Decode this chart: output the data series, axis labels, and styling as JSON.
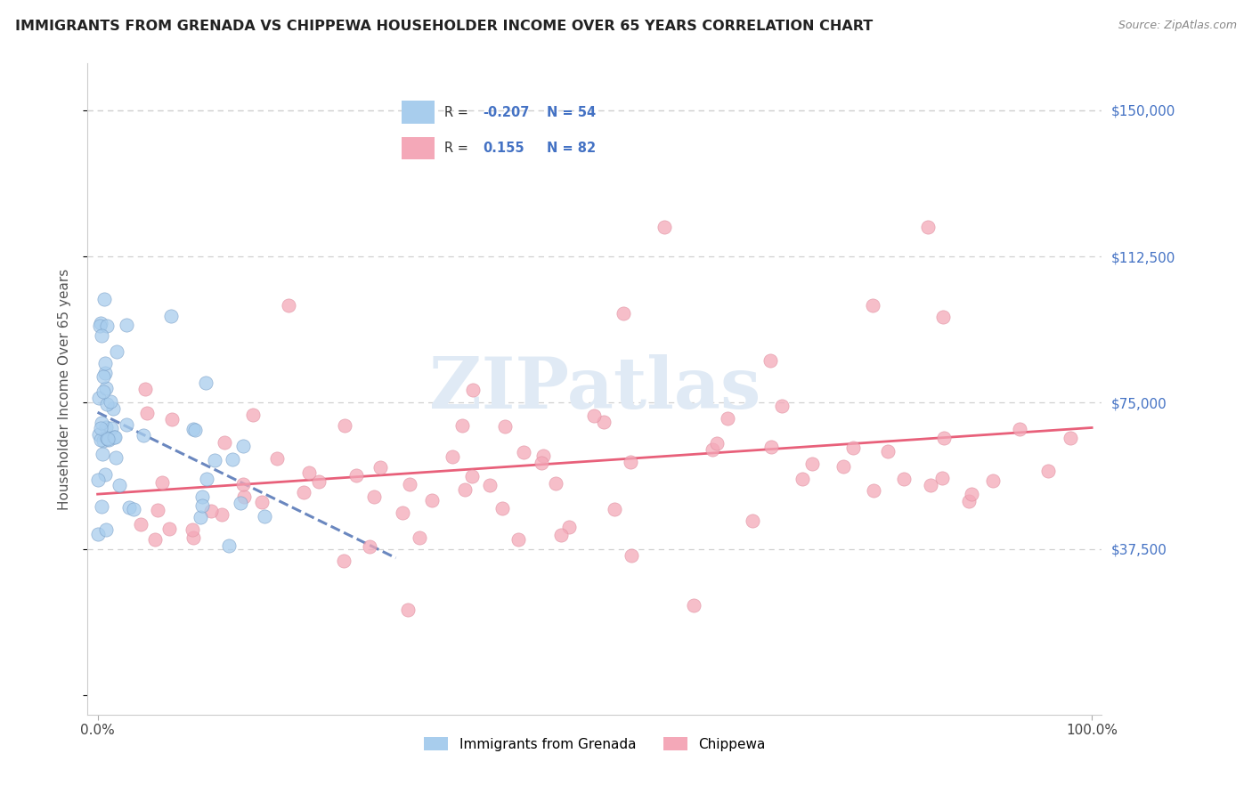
{
  "title": "IMMIGRANTS FROM GRENADA VS CHIPPEWA HOUSEHOLDER INCOME OVER 65 YEARS CORRELATION CHART",
  "source": "Source: ZipAtlas.com",
  "ylabel": "Householder Income Over 65 years",
  "xlim": [
    -1,
    101
  ],
  "ylim": [
    -5000,
    162000
  ],
  "ytick_vals": [
    0,
    37500,
    75000,
    112500,
    150000
  ],
  "ytick_labels_right": [
    "",
    "$37,500",
    "$75,000",
    "$112,500",
    "$150,000"
  ],
  "xtick_vals": [
    0,
    100
  ],
  "xtick_labels": [
    "0.0%",
    "100.0%"
  ],
  "legend_r1": "-0.207",
  "legend_n1": "54",
  "legend_r2": "0.155",
  "legend_n2": "82",
  "color_blue": "#A8CDED",
  "color_pink": "#F4A8B8",
  "line_blue_color": "#5A7AB8",
  "line_pink_color": "#E8607A",
  "title_color": "#222222",
  "axis_label_color": "#4472C4",
  "tick_color": "#444444",
  "grid_color": "#D0D0D0",
  "watermark_color": "#E0EAF5",
  "bg_color": "#FFFFFF"
}
